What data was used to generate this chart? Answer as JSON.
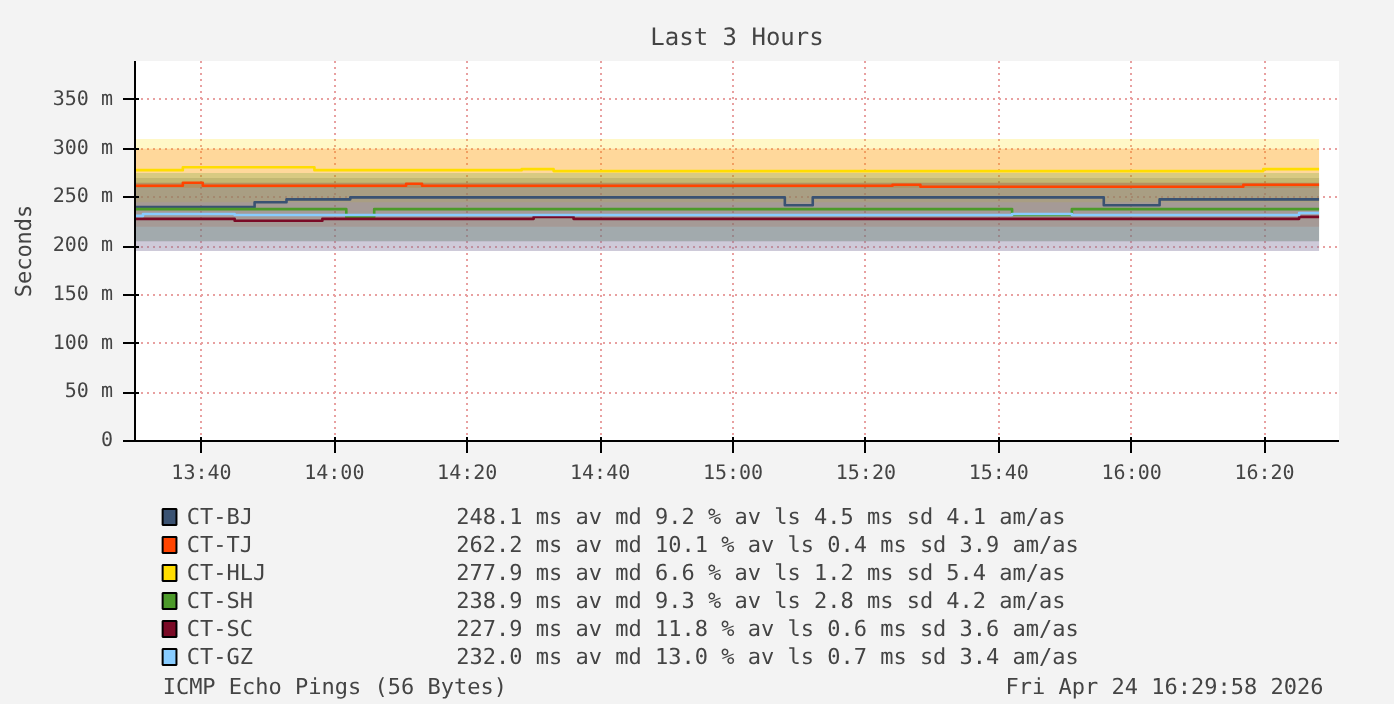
{
  "chart_data": {
    "type": "step",
    "title": "Last 3 Hours",
    "ylabel": "Seconds",
    "xlim": [
      13.5,
      16.52
    ],
    "ylim": [
      0,
      390
    ],
    "xticks": [
      {
        "value": 13.6667,
        "label": "13:40"
      },
      {
        "value": 14.0,
        "label": "14:00"
      },
      {
        "value": 14.3333,
        "label": "14:20"
      },
      {
        "value": 14.6667,
        "label": "14:40"
      },
      {
        "value": 15.0,
        "label": "15:00"
      },
      {
        "value": 15.3333,
        "label": "15:20"
      },
      {
        "value": 15.6667,
        "label": "15:40"
      },
      {
        "value": 16.0,
        "label": "16:00"
      },
      {
        "value": 16.3333,
        "label": "16:20"
      }
    ],
    "yticks": [
      0,
      {
        "value": 50,
        "label": "50 m"
      },
      {
        "value": 100,
        "label": "100 m"
      },
      {
        "value": 150,
        "label": "150 m"
      },
      {
        "value": 200,
        "label": "200 m"
      },
      {
        "value": 250,
        "label": "250 m"
      },
      {
        "value": 300,
        "label": "300 m"
      },
      {
        "value": 350,
        "label": "350 m"
      }
    ],
    "grid": true,
    "legend": "bottom",
    "series": [
      {
        "name": "CT-BJ",
        "color": "#3a5272",
        "x": [
          13.5,
          13.8,
          13.88,
          14.04,
          15.13,
          15.2,
          15.93,
          16.07,
          16.47
        ],
        "values": [
          240,
          245,
          248,
          250,
          242,
          250,
          242,
          248,
          248
        ],
        "lower": [
          205,
          205,
          205,
          205,
          205,
          205,
          205,
          205,
          205
        ],
        "upper": [
          270,
          270,
          270,
          270,
          270,
          270,
          270,
          270,
          270
        ]
      },
      {
        "name": "CT-TJ",
        "color": "#ff4400",
        "x": [
          13.5,
          13.62,
          13.67,
          14.18,
          14.22,
          15.4,
          15.47,
          16.28,
          16.47
        ],
        "values": [
          262,
          265,
          262,
          264,
          262,
          263,
          261,
          263,
          263
        ],
        "lower": [
          220,
          220,
          220,
          220,
          220,
          220,
          220,
          220,
          220
        ],
        "upper": [
          300,
          300,
          300,
          300,
          300,
          300,
          300,
          300,
          300
        ]
      },
      {
        "name": "CT-HLJ",
        "color": "#ffdd00",
        "x": [
          13.5,
          13.62,
          13.95,
          14.47,
          14.55,
          16.33,
          16.47
        ],
        "values": [
          278,
          281,
          278,
          279,
          277,
          279,
          279
        ],
        "lower": [
          245,
          245,
          245,
          245,
          245,
          245,
          245
        ],
        "upper": [
          310,
          310,
          310,
          310,
          310,
          310,
          310
        ]
      },
      {
        "name": "CT-SH",
        "color": "#4c9a2a",
        "x": [
          13.5,
          14.03,
          14.1,
          15.7,
          15.85,
          16.47
        ],
        "values": [
          238,
          230,
          238,
          232,
          238,
          238
        ],
        "lower": [
          205,
          205,
          205,
          205,
          205,
          205
        ],
        "upper": [
          275,
          275,
          275,
          275,
          275,
          275
        ]
      },
      {
        "name": "CT-SC",
        "color": "#7a0a26",
        "x": [
          13.5,
          13.75,
          13.97,
          14.5,
          14.6,
          16.42,
          16.47
        ],
        "values": [
          228,
          226,
          228,
          230,
          228,
          230,
          230
        ],
        "lower": [
          195,
          195,
          195,
          195,
          195,
          195,
          195
        ],
        "upper": [
          265,
          265,
          265,
          265,
          265,
          265,
          265
        ]
      },
      {
        "name": "CT-GZ",
        "color": "#88ccff",
        "x": [
          13.5,
          13.52,
          13.75,
          15.7,
          15.85,
          16.42,
          16.47
        ],
        "values": [
          231,
          233,
          232,
          233,
          232,
          234,
          234
        ],
        "lower": [
          195,
          195,
          195,
          195,
          195,
          195,
          195
        ],
        "upper": [
          260,
          260,
          260,
          260,
          260,
          260,
          260
        ]
      }
    ],
    "annotations": [
      "248.1 ms av md 9.2 % av ls 4.5 ms sd 4.1 am/as",
      "262.2 ms av md 10.1 % av ls 0.4 ms sd 3.9 am/as",
      "277.9 ms av md 6.6 % av ls 1.2 ms sd 5.4 am/as",
      "238.9 ms av md 9.3 % av ls 2.8 ms sd 4.2 am/as",
      "227.9 ms av md 11.8 % av ls 0.6 ms sd 3.6 am/as",
      "232.0 ms av md 13.0 % av ls 0.7 ms sd 3.4 am/as",
      "ICMP Echo Pings (56 Bytes)",
      "Fri Apr 24 16:29:58 2026"
    ]
  }
}
